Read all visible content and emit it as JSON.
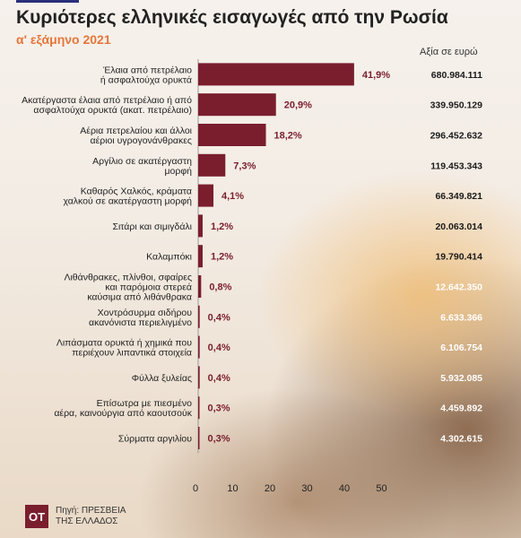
{
  "header": {
    "title": "Κυριότερες ελληνικές εισαγωγές από την Ρωσία",
    "subtitle": "α' εξάμηνο 2021",
    "value_header": "Αξία σε ευρώ"
  },
  "footer": {
    "logo": "ΟΤ",
    "source": "Πηγή: ΠΡΕΣΒΕΙΑ ΤΗΣ ΕΛΛΑΔΟΣ"
  },
  "colors": {
    "bar": "#7a1e2e",
    "pct_label": "#7a1e2e",
    "subtitle": "#e5763a"
  },
  "chart_data": {
    "type": "bar",
    "orientation": "horizontal",
    "title": "Κυριότερες ελληνικές εισαγωγές από την Ρωσία",
    "subtitle": "α' εξάμηνο 2021",
    "xlabel": "",
    "ylabel": "",
    "xlim": [
      0,
      50
    ],
    "xticks": [
      0,
      10,
      20,
      30,
      40,
      50
    ],
    "grid": false,
    "categories": [
      [
        "Έλαια από πετρέλαιο",
        "ή ασφαλτούχα ορυκτά"
      ],
      [
        "Ακατέργαστα έλαια από πετρέλαιο ή από",
        "ασφαλτούχα ορυκτά (ακατ. πετρέλαιο)"
      ],
      [
        "Αέρια πετρελαίου και άλλοι",
        "αέριοι υγρογονάνθρακες"
      ],
      [
        "Αργίλιο σε ακατέργαστη",
        "μορφή"
      ],
      [
        "Καθαρός Χαλκός, κράματα",
        "χαλκού σε ακατέργαστη μορφή"
      ],
      [
        "Σιτάρι και σιμιγδάλι"
      ],
      [
        "Καλαμπόκι"
      ],
      [
        "Λιθάνθρακες, πλίνθοι, σφαίρες",
        "και παρόμοια στερεά",
        "καύσιμα από λιθάνθρακα"
      ],
      [
        "Χοντρόσυρμα σιδήρου",
        "ακανόνιστα περιελιγμένο"
      ],
      [
        "Λιπάσματα ορυκτά ή χημικά που",
        "περιέχουν λιπαντικά στοιχεία"
      ],
      [
        "Φύλλα ξυλείας"
      ],
      [
        "Επίσωτρα με πιεσμένο",
        "αέρα, καινούργια από καουτσούκ"
      ],
      [
        "Σύρματα αργιλίου"
      ]
    ],
    "values": [
      41.9,
      20.9,
      18.2,
      7.3,
      4.1,
      1.2,
      1.2,
      0.8,
      0.4,
      0.4,
      0.4,
      0.3,
      0.3
    ],
    "value_labels": [
      "41,9%",
      "20,9%",
      "18,2%",
      "7,3%",
      "4,1%",
      "1,2%",
      "1,2%",
      "0,8%",
      "0,4%",
      "0,4%",
      "0,4%",
      "0,3%",
      "0,3%"
    ],
    "euro_values": [
      "680.984.111",
      "339.950.129",
      "296.452.632",
      "119.453.343",
      "66.349.821",
      "20.063.014",
      "19.790.414",
      "12.642.350",
      "6.633.366",
      "6.106.754",
      "5.932.085",
      "4.459.892",
      "4.302.615"
    ]
  }
}
